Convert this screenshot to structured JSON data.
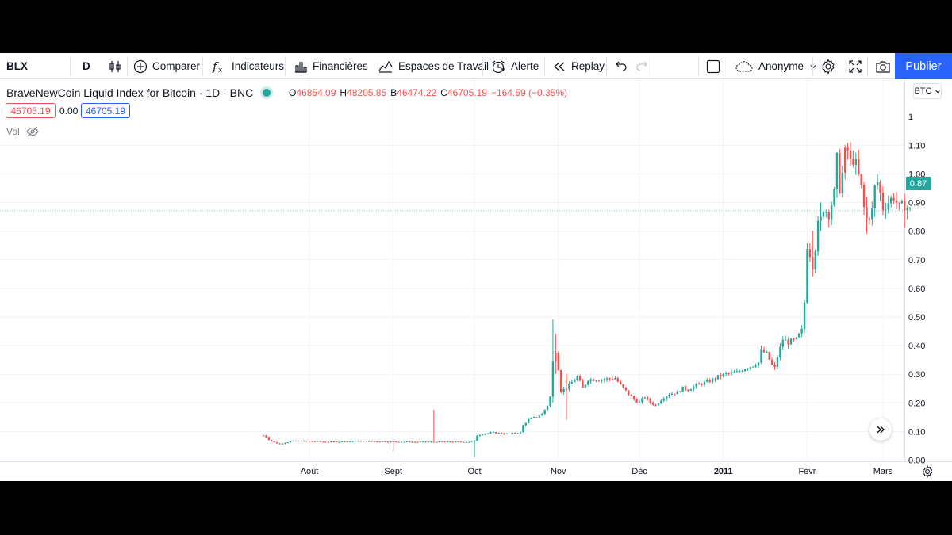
{
  "toolbar": {
    "symbol": "BLX",
    "interval": "D",
    "compare": "Comparer",
    "indicators": "Indicateurs",
    "financials": "Financières",
    "workspaces": "Espaces de Travail",
    "alert": "Alerte",
    "replay": "Replay",
    "account": "Anonyme",
    "publish": "Publier"
  },
  "legend": {
    "title": "BraveNewCoin Liquid Index for Bitcoin · 1D · BNC",
    "open_label": "O",
    "open": "46854.09",
    "high_label": "H",
    "high": "48205.85",
    "low_label": "B",
    "low": "46474.22",
    "close_label": "C",
    "close": "46705.19",
    "change": "−164.59 (−0.35%)",
    "bid": "46705.19",
    "spread": "0.00",
    "ask": "46705.19",
    "volume_label": "Vol"
  },
  "colors": {
    "up": "#26a69a",
    "down": "#ef5350",
    "accent": "#2962ff"
  },
  "scale_button": "BTC",
  "last_price_label": "0.87",
  "chart_data": {
    "type": "candlestick",
    "x_ticks": [
      {
        "label": "Août",
        "day": 42
      },
      {
        "label": "Sept",
        "day": 73
      },
      {
        "label": "Oct",
        "day": 103
      },
      {
        "label": "Nov",
        "day": 134
      },
      {
        "label": "Déc",
        "day": 164
      },
      {
        "label": "2011",
        "day": 195,
        "bold": true
      },
      {
        "label": "Févr",
        "day": 226
      },
      {
        "label": "Mars",
        "day": 254
      }
    ],
    "y_ticks": [
      "0.00",
      "0.10",
      "0.20",
      "0.30",
      "0.40",
      "0.50",
      "0.60",
      "0.70",
      "0.80",
      "0.90",
      "1.00",
      "1.10"
    ],
    "ylim": [
      0,
      1.1
    ],
    "last_price": 0.87,
    "top_partial_tick": "1",
    "anchors": [
      [
        25,
        0.085
      ],
      [
        26,
        0.08
      ],
      [
        27,
        0.07
      ],
      [
        28,
        0.065
      ],
      [
        29,
        0.06
      ],
      [
        31,
        0.055
      ],
      [
        33,
        0.06
      ],
      [
        36,
        0.065
      ],
      [
        40,
        0.065
      ],
      [
        50,
        0.062
      ],
      [
        60,
        0.065
      ],
      [
        70,
        0.063
      ],
      [
        80,
        0.062
      ],
      [
        90,
        0.062
      ],
      [
        100,
        0.062
      ],
      [
        103,
        0.065
      ],
      [
        104,
        0.085
      ],
      [
        106,
        0.09
      ],
      [
        110,
        0.095
      ],
      [
        115,
        0.09
      ],
      [
        120,
        0.095
      ],
      [
        121,
        0.12
      ],
      [
        123,
        0.14
      ],
      [
        126,
        0.15
      ],
      [
        128,
        0.16
      ],
      [
        130,
        0.19
      ],
      [
        131,
        0.22
      ],
      [
        132,
        0.34
      ],
      [
        133,
        0.38
      ],
      [
        134,
        0.32
      ],
      [
        135,
        0.24
      ],
      [
        137,
        0.25
      ],
      [
        139,
        0.27
      ],
      [
        141,
        0.29
      ],
      [
        143,
        0.25
      ],
      [
        145,
        0.28
      ],
      [
        150,
        0.28
      ],
      [
        155,
        0.285
      ],
      [
        157,
        0.26
      ],
      [
        160,
        0.23
      ],
      [
        162,
        0.21
      ],
      [
        164,
        0.2
      ],
      [
        166,
        0.22
      ],
      [
        168,
        0.2
      ],
      [
        170,
        0.19
      ],
      [
        172,
        0.21
      ],
      [
        175,
        0.23
      ],
      [
        178,
        0.235
      ],
      [
        180,
        0.25
      ],
      [
        182,
        0.245
      ],
      [
        185,
        0.26
      ],
      [
        190,
        0.275
      ],
      [
        193,
        0.29
      ],
      [
        196,
        0.3
      ],
      [
        200,
        0.305
      ],
      [
        203,
        0.32
      ],
      [
        206,
        0.33
      ],
      [
        208,
        0.34
      ],
      [
        209,
        0.38
      ],
      [
        211,
        0.37
      ],
      [
        213,
        0.33
      ],
      [
        214,
        0.32
      ],
      [
        215,
        0.36
      ],
      [
        217,
        0.42
      ],
      [
        219,
        0.41
      ],
      [
        222,
        0.42
      ],
      [
        224,
        0.45
      ],
      [
        225,
        0.55
      ],
      [
        226,
        0.75
      ],
      [
        227,
        0.72
      ],
      [
        228,
        0.68
      ],
      [
        229,
        0.74
      ],
      [
        230,
        0.82
      ],
      [
        231,
        0.84
      ],
      [
        232,
        0.88
      ],
      [
        233,
        0.87
      ],
      [
        234,
        0.86
      ],
      [
        236,
        0.93
      ],
      [
        237,
        1.05
      ],
      [
        238,
        0.95
      ],
      [
        239,
        1.0
      ],
      [
        240,
        1.07
      ],
      [
        241,
        1.08
      ],
      [
        242,
        1.04
      ],
      [
        243,
        1.05
      ],
      [
        244,
        1.03
      ],
      [
        246,
        0.95
      ],
      [
        247,
        0.88
      ],
      [
        248,
        0.84
      ],
      [
        250,
        0.87
      ],
      [
        251,
        0.95
      ],
      [
        252,
        0.97
      ],
      [
        253,
        0.93
      ],
      [
        254,
        0.88
      ],
      [
        256,
        0.9
      ],
      [
        258,
        0.92
      ],
      [
        260,
        0.88
      ],
      [
        262,
        0.89
      ],
      [
        264,
        0.87
      ]
    ],
    "spikes": [
      {
        "day": 73,
        "low": 0.03,
        "high": 0.07
      },
      {
        "day": 88,
        "low": 0.06,
        "high": 0.175,
        "bear": true
      },
      {
        "day": 103,
        "low": 0.01,
        "high": 0.07
      },
      {
        "day": 132,
        "low": 0.2,
        "high": 0.49
      },
      {
        "day": 133,
        "low": 0.3,
        "high": 0.44,
        "bear": true
      },
      {
        "day": 137,
        "low": 0.14,
        "high": 0.3
      },
      {
        "day": 228,
        "low": 0.64,
        "high": 0.8
      },
      {
        "day": 231,
        "low": 0.8,
        "high": 0.9
      },
      {
        "day": 240,
        "low": 0.98,
        "high": 1.1,
        "bear": true
      },
      {
        "day": 248,
        "low": 0.79,
        "high": 0.92,
        "bear": true
      },
      {
        "day": 262,
        "low": 0.81,
        "high": 0.93,
        "bear": true
      }
    ]
  }
}
